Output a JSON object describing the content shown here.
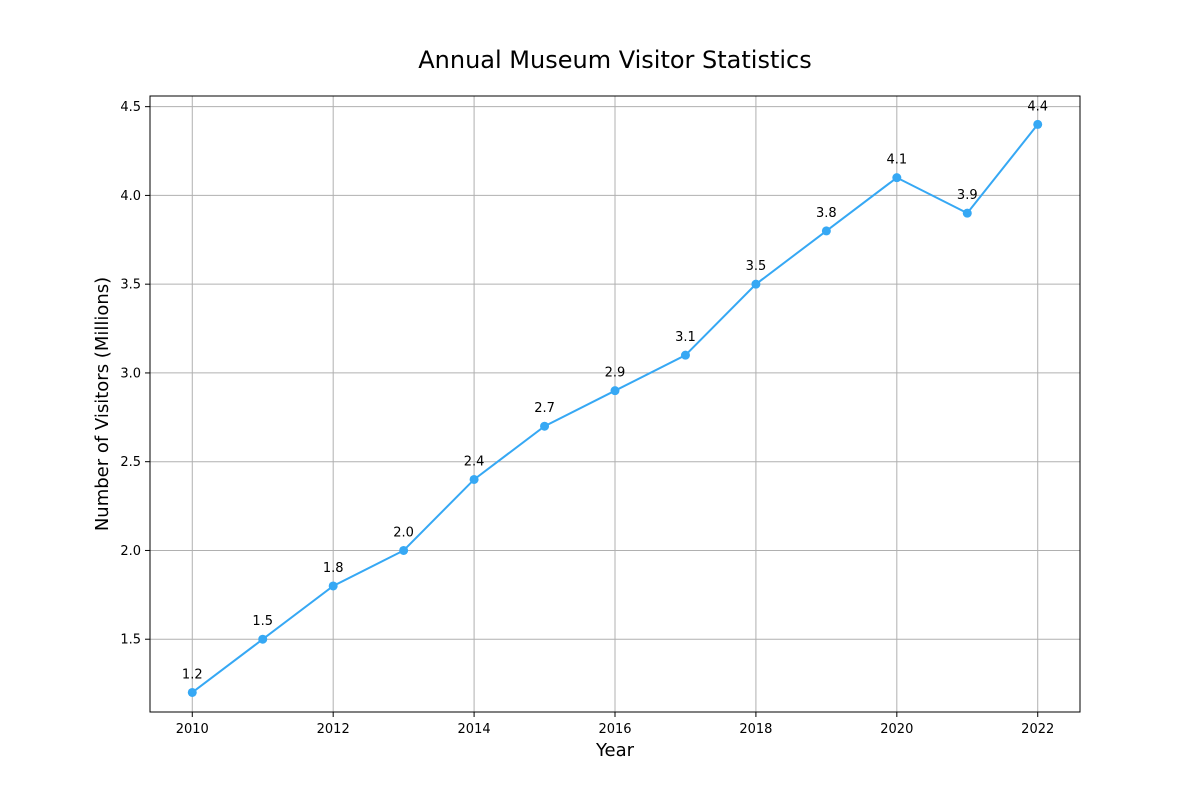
{
  "chart_data": {
    "type": "line",
    "title": "Annual Museum Visitor Statistics",
    "xlabel": "Year",
    "ylabel": "Number of Visitors (Millions)",
    "x": [
      2010,
      2011,
      2012,
      2013,
      2014,
      2015,
      2016,
      2017,
      2018,
      2019,
      2020,
      2021,
      2022
    ],
    "series": [
      {
        "values": [
          1.2,
          1.5,
          1.8,
          2.0,
          2.4,
          2.7,
          2.9,
          3.1,
          3.5,
          3.8,
          4.1,
          3.9,
          4.4
        ],
        "color": "#36a8f4",
        "marker": "circle"
      }
    ],
    "data_labels": [
      "1.2",
      "1.5",
      "1.8",
      "2.0",
      "2.4",
      "2.7",
      "2.9",
      "3.1",
      "3.5",
      "3.8",
      "4.1",
      "3.9",
      "4.4"
    ],
    "xlim": [
      2009.4,
      2022.6
    ],
    "ylim": [
      1.09,
      4.56
    ],
    "x_ticks": [
      2010,
      2012,
      2014,
      2016,
      2018,
      2020,
      2022
    ],
    "x_tick_labels": [
      "2010",
      "2012",
      "2014",
      "2016",
      "2018",
      "2020",
      "2022"
    ],
    "y_ticks": [
      1.5,
      2.0,
      2.5,
      3.0,
      3.5,
      4.0,
      4.5
    ],
    "y_tick_labels": [
      "1.5",
      "2.0",
      "2.5",
      "3.0",
      "3.5",
      "4.0",
      "4.5"
    ],
    "grid": true,
    "grid_color": "#b0b0b0",
    "legend": "none"
  }
}
